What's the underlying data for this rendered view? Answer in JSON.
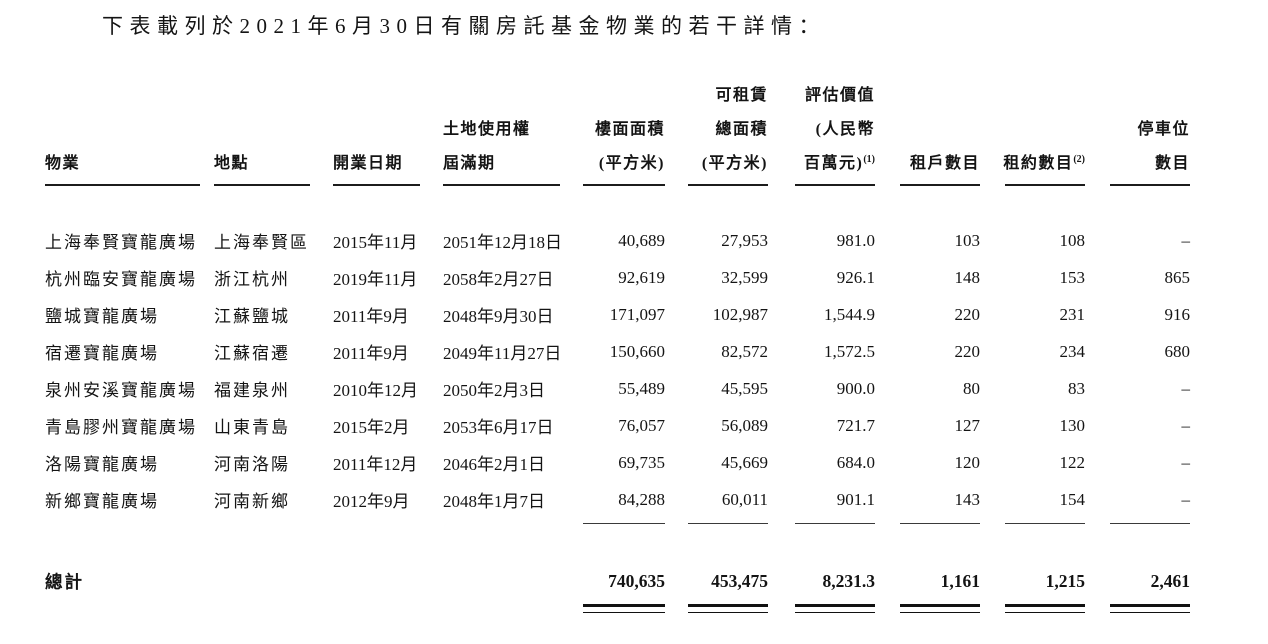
{
  "page": {
    "title": "下表載列於2021年6月30日有關房託基金物業的若干詳情："
  },
  "table": {
    "headers": {
      "property": "物業",
      "location": "地點",
      "opening_date": "開業日期",
      "land_use_line1": "土地使用權",
      "land_use_line2": "屆滿期",
      "gfa_line1": "樓面面積",
      "gfa_line2": "(平方米)",
      "rentable_line1": "可租賃",
      "rentable_line2": "總面積",
      "rentable_line3": "(平方米)",
      "valuation_line1": "評估價值",
      "valuation_line2": "(人民幣",
      "valuation_line3": "百萬元)",
      "valuation_sup": "(1)",
      "tenants": "租戶數目",
      "leases": "租約數目",
      "leases_sup": "(2)",
      "parking_line1": "停車位",
      "parking_line2": "數目"
    },
    "rows": [
      {
        "property": "上海奉賢寶龍廣場",
        "location": "上海奉賢區",
        "opening": "2015年11月",
        "expiry": "2051年12月18日",
        "gfa": "40,689",
        "rentable": "27,953",
        "valuation": "981.0",
        "tenants": "103",
        "leases": "108",
        "parking": "–"
      },
      {
        "property": "杭州臨安寶龍廣場",
        "location": "浙江杭州",
        "opening": "2019年11月",
        "expiry": "2058年2月27日",
        "gfa": "92,619",
        "rentable": "32,599",
        "valuation": "926.1",
        "tenants": "148",
        "leases": "153",
        "parking": "865"
      },
      {
        "property": "鹽城寶龍廣場",
        "location": "江蘇鹽城",
        "opening": "2011年9月",
        "expiry": "2048年9月30日",
        "gfa": "171,097",
        "rentable": "102,987",
        "valuation": "1,544.9",
        "tenants": "220",
        "leases": "231",
        "parking": "916"
      },
      {
        "property": "宿遷寶龍廣場",
        "location": "江蘇宿遷",
        "opening": "2011年9月",
        "expiry": "2049年11月27日",
        "gfa": "150,660",
        "rentable": "82,572",
        "valuation": "1,572.5",
        "tenants": "220",
        "leases": "234",
        "parking": "680"
      },
      {
        "property": "泉州安溪寶龍廣場",
        "location": "福建泉州",
        "opening": "2010年12月",
        "expiry": "2050年2月3日",
        "gfa": "55,489",
        "rentable": "45,595",
        "valuation": "900.0",
        "tenants": "80",
        "leases": "83",
        "parking": "–"
      },
      {
        "property": "青島膠州寶龍廣場",
        "location": "山東青島",
        "opening": "2015年2月",
        "expiry": "2053年6月17日",
        "gfa": "76,057",
        "rentable": "56,089",
        "valuation": "721.7",
        "tenants": "127",
        "leases": "130",
        "parking": "–"
      },
      {
        "property": "洛陽寶龍廣場",
        "location": "河南洛陽",
        "opening": "2011年12月",
        "expiry": "2046年2月1日",
        "gfa": "69,735",
        "rentable": "45,669",
        "valuation": "684.0",
        "tenants": "120",
        "leases": "122",
        "parking": "–"
      },
      {
        "property": "新鄉寶龍廣場",
        "location": "河南新鄉",
        "opening": "2012年9月",
        "expiry": "2048年1月7日",
        "gfa": "84,288",
        "rentable": "60,011",
        "valuation": "901.1",
        "tenants": "143",
        "leases": "154",
        "parking": "–"
      }
    ],
    "total": {
      "label": "總計",
      "gfa": "740,635",
      "rentable": "453,475",
      "valuation": "8,231.3",
      "tenants": "1,161",
      "leases": "1,215",
      "parking": "2,461"
    }
  }
}
